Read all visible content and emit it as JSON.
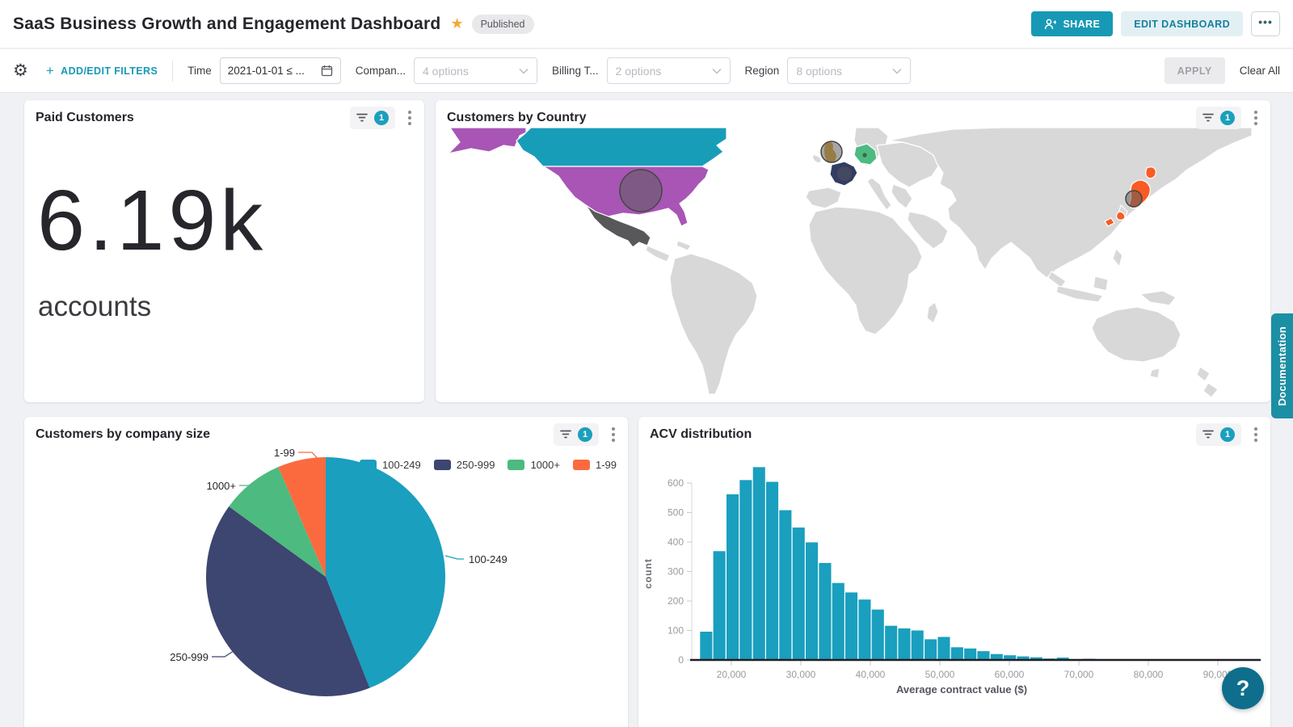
{
  "header": {
    "title": "SaaS Business Growth and Engagement Dashboard",
    "status_badge": "Published",
    "share_label": "SHARE",
    "edit_label": "EDIT DASHBOARD",
    "more_label": "•••"
  },
  "icons": {
    "star": "★",
    "gear": "⚙",
    "plus": "+",
    "help": "?",
    "filter": "funnel-shape",
    "kebab": "three-dots-vertical",
    "calendar": "calendar-shape",
    "chevron_down": "chevron-shape",
    "share": "person-plus-shape"
  },
  "filter_bar": {
    "add_edit_label": "ADD/EDIT FILTERS",
    "filters": {
      "time": {
        "label": "Time",
        "value": "2021-01-01 ≤ ..."
      },
      "company": {
        "label": "Compan...",
        "value": "4 options"
      },
      "billing": {
        "label": "Billing T...",
        "value": "2 options"
      },
      "region": {
        "label": "Region",
        "value": "8 options"
      }
    },
    "apply_label": "APPLY",
    "clear_all_label": "Clear All"
  },
  "cards": {
    "paid_customers": {
      "title": "Paid Customers",
      "filter_count": "1",
      "value": "6.19k",
      "unit": "accounts"
    },
    "customers_by_country": {
      "title": "Customers by Country",
      "filter_count": "1"
    },
    "company_size": {
      "title": "Customers by company size",
      "filter_count": "1"
    },
    "acv": {
      "title": "ACV distribution",
      "filter_count": "1"
    }
  },
  "chart_data": [
    {
      "type": "pie",
      "title": "Customers by company size",
      "labels": [
        "100-249",
        "250-999",
        "1000+",
        "1-99"
      ],
      "values_pct": [
        44,
        41,
        8.5,
        6.5
      ],
      "colors": [
        "#1A9FBE",
        "#3D4571",
        "#4DBA7F",
        "#FB6A3F"
      ],
      "start_angle_deg": 0,
      "direction": "clockwise",
      "legend_position": "top-right",
      "callout_labels_on": true
    },
    {
      "type": "map",
      "title": "Customers by Country",
      "base_land_color": "#D8D8D8",
      "border_color": "#FFFFFF",
      "bubble_color": "#5C5C5C",
      "highlighted": [
        {
          "country": "United States",
          "color": "#A855B5",
          "bubble": "large"
        },
        {
          "country": "Canada",
          "color": "#189DB8",
          "bubble": "none"
        },
        {
          "country": "Mexico",
          "color": "#58585A",
          "bubble": "none"
        },
        {
          "country": "United Kingdom",
          "color": "#DDA426",
          "bubble": "large"
        },
        {
          "country": "France",
          "color": "#333C63",
          "bubble": "medium"
        },
        {
          "country": "Germany",
          "color": "#4CBB80",
          "bubble": "dot"
        },
        {
          "country": "Japan",
          "color": "#F95B25",
          "bubble": "medium"
        }
      ]
    },
    {
      "type": "bar",
      "subtype": "histogram",
      "title": "ACV distribution",
      "xlabel": "Average contract value ($)",
      "ylabel": "count",
      "bar_color": "#1A9FBE",
      "bin_start": 15500,
      "bin_width": 1900,
      "counts": [
        96,
        369,
        562,
        610,
        654,
        604,
        508,
        449,
        399,
        329,
        261,
        229,
        205,
        171,
        116,
        107,
        100,
        70,
        78,
        43,
        39,
        30,
        20,
        16,
        12,
        9,
        5,
        8,
        0,
        4
      ],
      "x_ticks": [
        20000,
        30000,
        40000,
        50000,
        60000,
        70000,
        80000,
        90000
      ],
      "x_tick_labels": [
        "20,000",
        "30,000",
        "40,000",
        "50,000",
        "60,000",
        "70,000",
        "80,000",
        "90,000"
      ],
      "y_ticks": [
        0,
        100,
        200,
        300,
        400,
        500,
        600
      ],
      "ylim": [
        0,
        660
      ],
      "grid": false
    }
  ],
  "map_regions": {
    "canada": "#189DB8",
    "alaska": "#A855B5",
    "usa": "#A855B5",
    "mexico": "#58585A",
    "uk": "#DDA426",
    "france": "#333C63",
    "germany": "#4CBB80",
    "japan": "#F95B25"
  },
  "docs_tab_label": "Documentation",
  "help_label": "?"
}
